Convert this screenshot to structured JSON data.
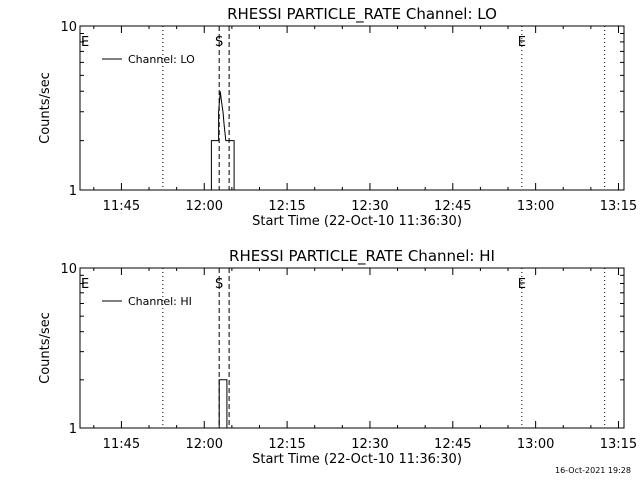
{
  "footer": {
    "timestamp": "16-Oct-2021 19:28"
  },
  "chart_data": [
    {
      "type": "line",
      "title": "RHESSI PARTICLE_RATE Channel: LO",
      "xlabel": "Start Time (22-Oct-10 11:36:30)",
      "ylabel": "Counts/sec",
      "yscale": "log",
      "ylim": [
        1,
        10
      ],
      "ytick_labels": [
        "1",
        "10"
      ],
      "xtick_labels": [
        "11:45",
        "12:00",
        "12:15",
        "12:30",
        "12:45",
        "13:00",
        "13:15"
      ],
      "xlim_minutes": [
        697.5,
        796
      ],
      "xtick_minutes": [
        705,
        720,
        735,
        750,
        765,
        780,
        795
      ],
      "legend": {
        "label": "Channel: LO",
        "placement": "top-left"
      },
      "markers": [
        {
          "label": "E",
          "minute": 697.5,
          "style": "dotted"
        },
        {
          "label": "",
          "minute": 712.5,
          "style": "dotted"
        },
        {
          "label": "S",
          "minute": 722.7,
          "style": "dashed"
        },
        {
          "label": "",
          "minute": 724.5,
          "style": "dashed"
        },
        {
          "label": "E",
          "minute": 777.5,
          "style": "dotted"
        },
        {
          "label": "",
          "minute": 792.5,
          "style": "dotted"
        }
      ],
      "series": [
        {
          "x": [
            697.5,
            721.3,
            721.3,
            722.6,
            722.6,
            722.9,
            723.1,
            723.4,
            723.6,
            723.9,
            724.2,
            724.2,
            725.4,
            725.4,
            796
          ],
          "y": [
            1,
            1,
            2,
            2,
            3,
            4,
            3.5,
            3,
            2.5,
            2,
            2,
            2,
            2,
            1,
            1
          ]
        }
      ]
    },
    {
      "type": "line",
      "title": "RHESSI PARTICLE_RATE Channel: HI",
      "xlabel": "Start Time (22-Oct-10 11:36:30)",
      "ylabel": "Counts/sec",
      "yscale": "log",
      "ylim": [
        1,
        10
      ],
      "ytick_labels": [
        "1",
        "10"
      ],
      "xtick_labels": [
        "11:45",
        "12:00",
        "12:15",
        "12:30",
        "12:45",
        "13:00",
        "13:15"
      ],
      "xlim_minutes": [
        697.5,
        796
      ],
      "xtick_minutes": [
        705,
        720,
        735,
        750,
        765,
        780,
        795
      ],
      "legend": {
        "label": "Channel: HI",
        "placement": "top-left"
      },
      "markers": [
        {
          "label": "E",
          "minute": 697.5,
          "style": "dotted"
        },
        {
          "label": "",
          "minute": 712.5,
          "style": "dotted"
        },
        {
          "label": "S",
          "minute": 722.7,
          "style": "dashed"
        },
        {
          "label": "",
          "minute": 724.5,
          "style": "dashed"
        },
        {
          "label": "E",
          "minute": 777.5,
          "style": "dotted"
        },
        {
          "label": "",
          "minute": 792.5,
          "style": "dotted"
        }
      ],
      "series": [
        {
          "x": [
            697.5,
            722.7,
            722.7,
            724.1,
            724.1,
            796
          ],
          "y": [
            1,
            1,
            2,
            2,
            1,
            1
          ]
        }
      ]
    }
  ]
}
